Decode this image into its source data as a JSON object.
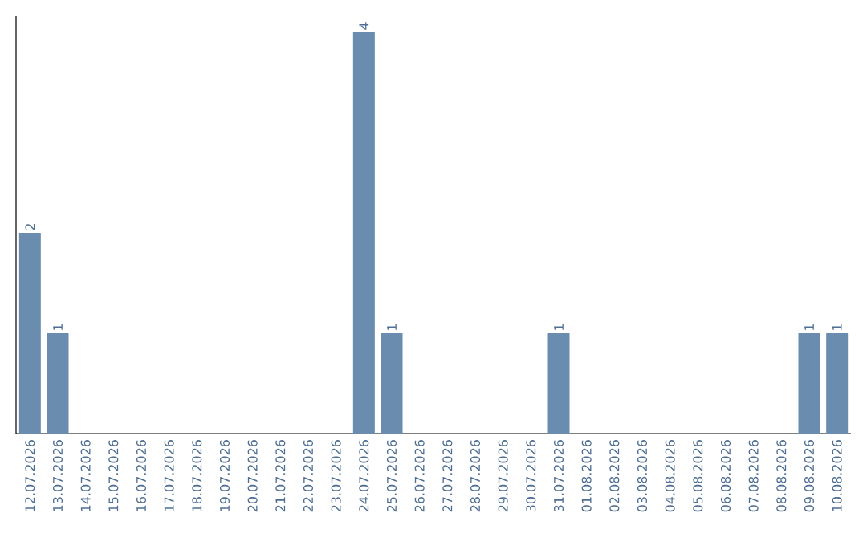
{
  "chart_data": {
    "type": "bar",
    "categories": [
      "12.07.2026",
      "13.07.2026",
      "14.07.2026",
      "15.07.2026",
      "16.07.2026",
      "17.07.2026",
      "18.07.2026",
      "19.07.2026",
      "20.07.2026",
      "21.07.2026",
      "22.07.2026",
      "23.07.2026",
      "24.07.2026",
      "25.07.2026",
      "26.07.2026",
      "27.07.2026",
      "28.07.2026",
      "29.07.2026",
      "30.07.2026",
      "31.07.2026",
      "01.08.2026",
      "02.08.2026",
      "03.08.2026",
      "04.08.2026",
      "05.08.2026",
      "06.08.2026",
      "07.08.2026",
      "08.08.2026",
      "09.08.2026",
      "10.08.2026"
    ],
    "values": [
      2,
      1,
      0,
      0,
      0,
      0,
      0,
      0,
      0,
      0,
      0,
      0,
      4,
      1,
      0,
      0,
      0,
      0,
      0,
      1,
      0,
      0,
      0,
      0,
      0,
      0,
      0,
      0,
      1,
      1
    ],
    "value_labels": [
      "2",
      "1",
      null,
      null,
      null,
      null,
      null,
      null,
      null,
      null,
      null,
      null,
      "4",
      "1",
      null,
      null,
      null,
      null,
      null,
      "1",
      null,
      null,
      null,
      null,
      null,
      null,
      null,
      null,
      "1",
      "1"
    ],
    "color": "#6a8caf"
  }
}
